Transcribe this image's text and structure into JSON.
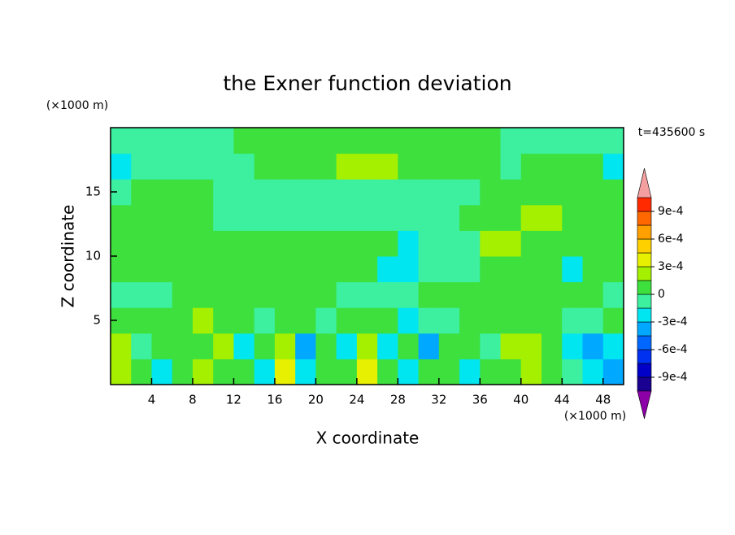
{
  "chart_data": {
    "type": "contour",
    "title": "the Exner function deviation",
    "xlabel": "X coordinate",
    "ylabel": "Z coordinate",
    "x_unit_label": "(×1000 m)",
    "y_unit_label": "(×1000 m)",
    "annotation": "t=435600 s",
    "xlim": [
      0,
      50
    ],
    "ylim": [
      0,
      20
    ],
    "xticks": [
      4,
      8,
      12,
      16,
      20,
      24,
      28,
      32,
      36,
      40,
      44,
      48
    ],
    "yticks": [
      5,
      10,
      15
    ],
    "x": [
      1,
      3,
      5,
      7,
      9,
      11,
      13,
      15,
      17,
      19,
      21,
      23,
      25,
      27,
      29,
      31,
      33,
      35,
      37,
      39,
      41,
      43,
      45,
      47,
      49
    ],
    "y": [
      1,
      3,
      5,
      7,
      9,
      11,
      13,
      15,
      17,
      19
    ],
    "z": [
      [
        0.0002,
        7e-05,
        -0.0002,
        7e-05,
        0.0002,
        7e-05,
        7e-05,
        -0.0002,
        0.00035,
        -0.0002,
        7e-05,
        7e-05,
        0.00035,
        7e-05,
        -0.0002,
        7e-05,
        7e-05,
        -0.0002,
        7e-05,
        7e-05,
        0.0002,
        7e-05,
        -5e-05,
        -0.0002,
        -0.00035
      ],
      [
        0.0002,
        -5e-05,
        7e-05,
        7e-05,
        7e-05,
        0.0002,
        -0.0002,
        7e-05,
        0.0002,
        -0.00035,
        7e-05,
        -0.0002,
        0.0002,
        -0.0002,
        7e-05,
        -0.00035,
        7e-05,
        7e-05,
        -5e-05,
        0.0002,
        0.0002,
        7e-05,
        -0.0002,
        -0.00035,
        -0.0002
      ],
      [
        7e-05,
        7e-05,
        7e-05,
        7e-05,
        0.0002,
        7e-05,
        7e-05,
        -5e-05,
        7e-05,
        7e-05,
        -5e-05,
        7e-05,
        7e-05,
        7e-05,
        -0.0002,
        -5e-05,
        -5e-05,
        7e-05,
        7e-05,
        7e-05,
        7e-05,
        7e-05,
        -5e-05,
        -5e-05,
        7e-05
      ],
      [
        -5e-05,
        -5e-05,
        -5e-05,
        7e-05,
        7e-05,
        7e-05,
        7e-05,
        7e-05,
        7e-05,
        7e-05,
        7e-05,
        -5e-05,
        -5e-05,
        -5e-05,
        -5e-05,
        7e-05,
        7e-05,
        7e-05,
        7e-05,
        7e-05,
        7e-05,
        7e-05,
        7e-05,
        7e-05,
        -5e-05
      ],
      [
        7e-05,
        7e-05,
        7e-05,
        7e-05,
        7e-05,
        7e-05,
        7e-05,
        7e-05,
        7e-05,
        7e-05,
        7e-05,
        7e-05,
        7e-05,
        -0.0002,
        -0.0002,
        -5e-05,
        -5e-05,
        -5e-05,
        7e-05,
        7e-05,
        7e-05,
        7e-05,
        -0.0002,
        7e-05,
        7e-05
      ],
      [
        7e-05,
        7e-05,
        7e-05,
        7e-05,
        7e-05,
        7e-05,
        7e-05,
        7e-05,
        7e-05,
        7e-05,
        7e-05,
        7e-05,
        7e-05,
        7e-05,
        -0.0002,
        -5e-05,
        -5e-05,
        -5e-05,
        0.0002,
        0.0002,
        7e-05,
        7e-05,
        7e-05,
        7e-05,
        7e-05
      ],
      [
        7e-05,
        7e-05,
        7e-05,
        7e-05,
        7e-05,
        -5e-05,
        -5e-05,
        -5e-05,
        -5e-05,
        -5e-05,
        -5e-05,
        -5e-05,
        -5e-05,
        -5e-05,
        -5e-05,
        -5e-05,
        -5e-05,
        7e-05,
        7e-05,
        7e-05,
        0.0002,
        0.0002,
        7e-05,
        7e-05,
        7e-05
      ],
      [
        -5e-05,
        7e-05,
        7e-05,
        7e-05,
        7e-05,
        -5e-05,
        -5e-05,
        -5e-05,
        -5e-05,
        -5e-05,
        -5e-05,
        -5e-05,
        -5e-05,
        -5e-05,
        -5e-05,
        -5e-05,
        -5e-05,
        -5e-05,
        7e-05,
        7e-05,
        7e-05,
        7e-05,
        7e-05,
        7e-05,
        7e-05
      ],
      [
        -0.0002,
        -5e-05,
        -5e-05,
        -5e-05,
        -5e-05,
        -5e-05,
        -5e-05,
        7e-05,
        7e-05,
        7e-05,
        7e-05,
        0.0002,
        0.0002,
        0.0002,
        7e-05,
        7e-05,
        7e-05,
        7e-05,
        7e-05,
        -5e-05,
        7e-05,
        7e-05,
        7e-05,
        7e-05,
        -0.0002
      ],
      [
        -5e-05,
        -5e-05,
        -5e-05,
        -5e-05,
        -5e-05,
        -5e-05,
        7e-05,
        7e-05,
        7e-05,
        7e-05,
        7e-05,
        7e-05,
        7e-05,
        7e-05,
        7e-05,
        7e-05,
        7e-05,
        7e-05,
        7e-05,
        -5e-05,
        -5e-05,
        -5e-05,
        -5e-05,
        -5e-05,
        -5e-05
      ]
    ],
    "levels": [
      -0.00105,
      -0.0009,
      -0.00075,
      -0.0006,
      -0.00045,
      -0.0003,
      -0.00015,
      0,
      0.00015,
      0.0003,
      0.00045,
      0.0006,
      0.00075,
      0.0009,
      0.00105
    ],
    "colors": [
      "#1a0090",
      "#0000c8",
      "#0030f0",
      "#0068ff",
      "#00a8ff",
      "#00e6f0",
      "#3cf0a0",
      "#3ee03e",
      "#a4f000",
      "#e6f000",
      "#ffd000",
      "#ffa000",
      "#ff6800",
      "#ff2a00"
    ],
    "under_color": "#8c00a8",
    "over_color": "#f4a0a0",
    "colorbar_ticks": [
      {
        "value": 0.0009,
        "label": "9e-4"
      },
      {
        "value": 0.0006,
        "label": "6e-4"
      },
      {
        "value": 0.0003,
        "label": "3e-4"
      },
      0,
      {
        "value": -0.0003,
        "label": "-3e-4"
      },
      {
        "value": -0.0006,
        "label": "-6e-4"
      },
      {
        "value": -0.0009,
        "label": "-9e-4"
      }
    ]
  }
}
